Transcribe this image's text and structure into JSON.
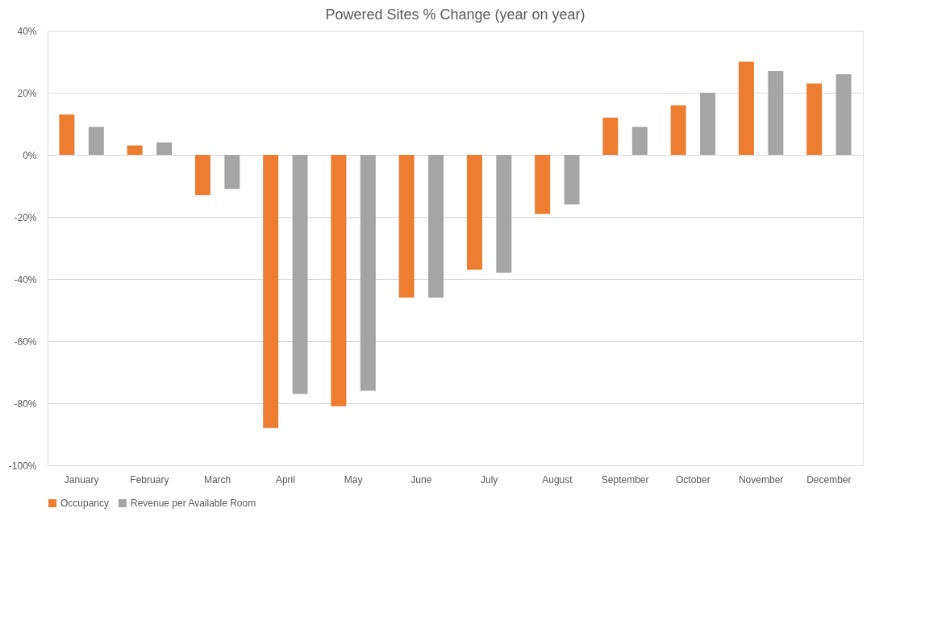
{
  "chart_data": {
    "type": "bar",
    "title": "Powered Sites % Change (year on year)",
    "categories": [
      "January",
      "February",
      "March",
      "April",
      "May",
      "June",
      "July",
      "August",
      "September",
      "October",
      "November",
      "December"
    ],
    "series": [
      {
        "name": "Occupancy",
        "color": "#ed7d31",
        "values": [
          13,
          3,
          -13,
          -88,
          -81,
          -46,
          -37,
          -19,
          12,
          16,
          30,
          23
        ]
      },
      {
        "name": "Revenue per Available Room",
        "color": "#a5a5a5",
        "values": [
          9,
          4,
          -11,
          -77,
          -76,
          -46,
          -38,
          -16,
          9,
          20,
          27,
          26
        ]
      }
    ],
    "ylim": [
      -100,
      40
    ],
    "yticks": [
      {
        "value": -100,
        "label": "-100%"
      },
      {
        "value": -80,
        "label": "-80%"
      },
      {
        "value": -60,
        "label": "-60%"
      },
      {
        "value": -40,
        "label": "-40%"
      },
      {
        "value": -20,
        "label": "-20%"
      },
      {
        "value": 0,
        "label": "0%"
      },
      {
        "value": 20,
        "label": "20%"
      },
      {
        "value": 40,
        "label": "40%"
      }
    ],
    "grid": "y",
    "legend": "bottom"
  }
}
